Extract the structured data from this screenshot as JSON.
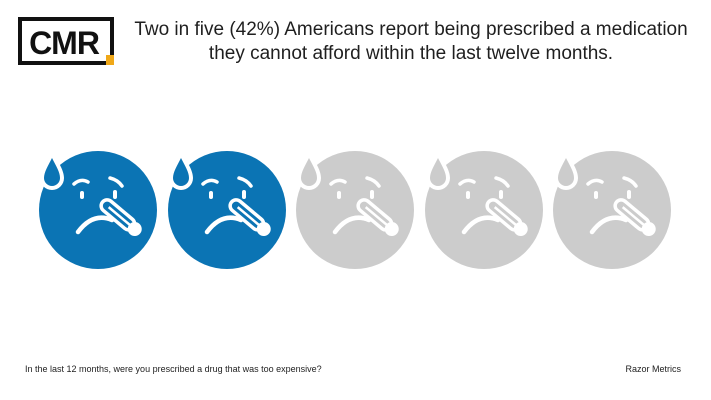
{
  "logo": {
    "text": "CMR",
    "accent_color": "#f0a818"
  },
  "headline": {
    "line1": "Two in five (42%) Americans report being prescribed a medication",
    "line2": "they cannot afford within the last twelve months."
  },
  "icons": {
    "icon_name": "sick-face-with-thermometer-and-sweat-drop",
    "total": 5,
    "highlighted": 2,
    "share_percent": 42,
    "highlight_color": "#0b74b4",
    "muted_color": "#cccccc"
  },
  "footer": {
    "question": "In the last 12 months, were you prescribed a drug that was too expensive?",
    "source": "Razor Metrics"
  }
}
